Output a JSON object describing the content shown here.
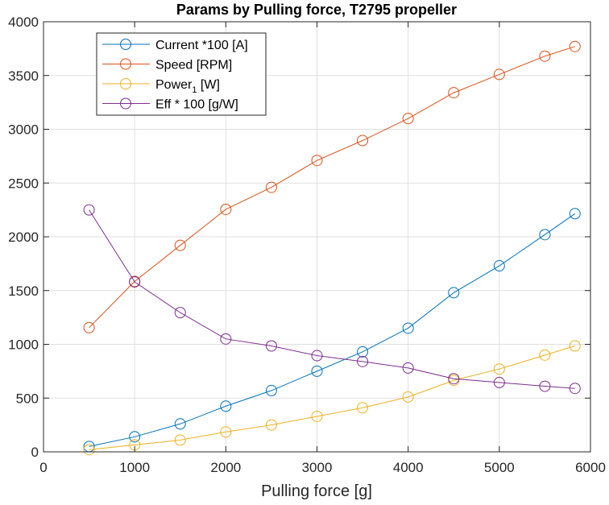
{
  "chart_data": {
    "type": "line",
    "title": "Params by Pulling force, T2795 propeller",
    "xlabel": "Pulling force [g]",
    "ylabel": "",
    "xlim": [
      0,
      6000
    ],
    "ylim": [
      0,
      4000
    ],
    "xticks": [
      0,
      1000,
      2000,
      3000,
      4000,
      5000,
      6000
    ],
    "yticks": [
      0,
      500,
      1000,
      1500,
      2000,
      2500,
      3000,
      3500,
      4000
    ],
    "grid": true,
    "legend_position": "top-left",
    "x": [
      500,
      1000,
      1500,
      2000,
      2500,
      3000,
      3500,
      4000,
      4500,
      5000,
      5500,
      5830
    ],
    "series": [
      {
        "name": "Current *100 [A]",
        "color": "#0072BD",
        "marker": "circle",
        "values": [
          50,
          140,
          260,
          425,
          570,
          750,
          930,
          1150,
          1480,
          1730,
          2020,
          2215
        ]
      },
      {
        "name": "Speed [RPM]",
        "color": "#D95319",
        "marker": "circle",
        "values": [
          1155,
          1585,
          1920,
          2255,
          2460,
          2710,
          2895,
          3100,
          3340,
          3510,
          3680,
          3770
        ]
      },
      {
        "name": "Power",
        "name_subscript": "1",
        "name_suffix": " [W]",
        "color": "#EDB120",
        "marker": "circle",
        "values": [
          20,
          65,
          110,
          185,
          250,
          330,
          410,
          510,
          665,
          770,
          900,
          985
        ]
      },
      {
        "name": "Eff * 100 [g/W]",
        "color": "#7E2F8E",
        "marker": "circle",
        "values": [
          2250,
          1580,
          1295,
          1050,
          985,
          895,
          840,
          780,
          680,
          645,
          610,
          590
        ]
      }
    ]
  }
}
